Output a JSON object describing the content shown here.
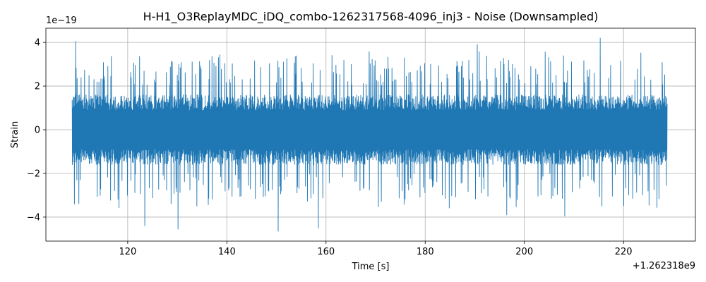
{
  "chart_data": {
    "type": "line",
    "title": "H-H1_O3ReplayMDC_iDQ_combo-1262317568-4096_inj3 - Noise (Downsampled)",
    "xlabel": "Time [s]",
    "ylabel": "Strain",
    "x_offset_label": "+1.262318e9",
    "y_scale_label": "1e−19",
    "xlim": [
      103.5,
      234.5
    ],
    "ylim": [
      -5.1,
      4.65
    ],
    "x_range": [
      108.8,
      228.8
    ],
    "x_ticks": [
      {
        "value": 120,
        "label": "120"
      },
      {
        "value": 140,
        "label": "140"
      },
      {
        "value": 160,
        "label": "160"
      },
      {
        "value": 180,
        "label": "180"
      },
      {
        "value": 200,
        "label": "200"
      },
      {
        "value": 220,
        "label": "220"
      }
    ],
    "y_ticks": [
      {
        "value": -4,
        "label": "−4"
      },
      {
        "value": -2,
        "label": "−2"
      },
      {
        "value": 0,
        "label": "0"
      },
      {
        "value": 2,
        "label": "2"
      },
      {
        "value": 4,
        "label": "4"
      }
    ],
    "grid": true,
    "series": [
      {
        "color": "#1f77b4",
        "band_lower": -1.6,
        "band_upper": 1.6,
        "peaks": [
          {
            "x": 109.5,
            "y": 4.05
          },
          {
            "x": 109.3,
            "y": -3.4
          },
          {
            "x": 123.5,
            "y": -4.4
          },
          {
            "x": 130.2,
            "y": -4.55
          },
          {
            "x": 150.3,
            "y": -4.65
          },
          {
            "x": 158.5,
            "y": -4.5
          },
          {
            "x": 190.5,
            "y": 3.9
          },
          {
            "x": 196.5,
            "y": -3.9
          },
          {
            "x": 208.2,
            "y": -3.95
          },
          {
            "x": 215.3,
            "y": 4.2
          }
        ]
      }
    ]
  }
}
